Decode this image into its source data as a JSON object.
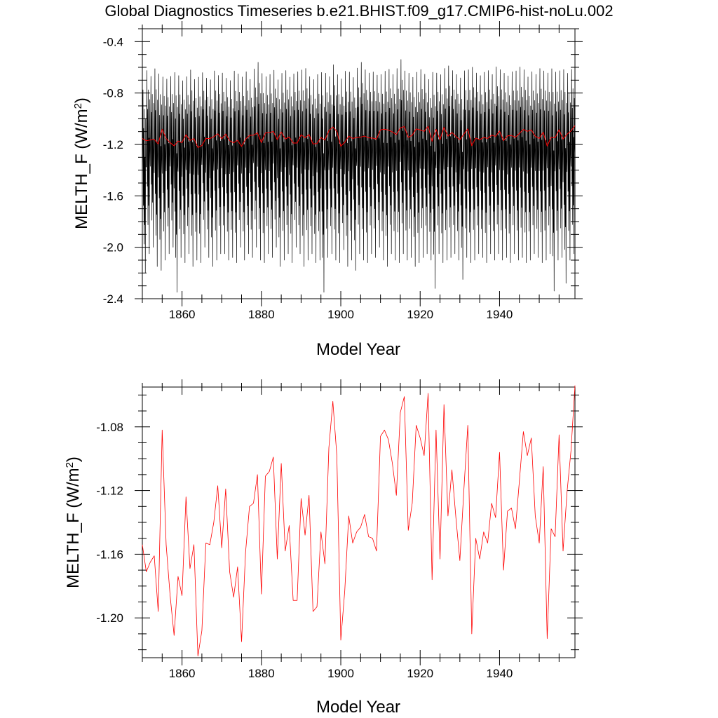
{
  "title": "Global Diagnostics Timeseries b.e21.BHIST.f09_g17.CMIP6-hist-noLu.002",
  "colors": {
    "monthly": "#000000",
    "annual": "#ff0000",
    "frame": "#000000"
  },
  "chart_data": [
    {
      "type": "line",
      "panel": "top",
      "xlabel": "Model Year",
      "ylabel": "MELTH_F (W/m",
      "ylabel_sup": "2",
      "ylabel_end": ")",
      "xlim": [
        1850,
        1959
      ],
      "ylim": [
        -2.4,
        -0.3
      ],
      "x_ticks": [
        1860,
        1880,
        1900,
        1920,
        1940
      ],
      "x_tick_labels": [
        "1860",
        "1880",
        "1900",
        "1920",
        "1940"
      ],
      "y_ticks": [
        -0.4,
        -0.8,
        -1.2,
        -1.6,
        -2.0,
        -2.4
      ],
      "y_tick_labels": [
        "-0.4",
        "-0.8",
        "-1.2",
        "-1.6",
        "-2.0",
        "-2.4"
      ],
      "monthly_series": {
        "start_year": 1850,
        "samples_per_year": 12,
        "annual_peak_max": [
          -0.7,
          -0.55,
          -0.6,
          -0.53,
          -0.57,
          -0.6,
          -0.62,
          -0.6,
          -0.55,
          -0.59,
          -0.63,
          -0.6,
          -0.54,
          -0.62,
          -0.6,
          -0.57,
          -0.61,
          -0.62,
          -0.55,
          -0.59,
          -0.57,
          -0.61,
          -0.63,
          -0.55,
          -0.58,
          -0.6,
          -0.56,
          -0.62,
          -0.54,
          -0.48,
          -0.57,
          -0.6,
          -0.58,
          -0.55,
          -0.62,
          -0.57,
          -0.55,
          -0.6,
          -0.58,
          -0.56,
          -0.54,
          -0.53,
          -0.6,
          -0.62,
          -0.58,
          -0.55,
          -0.57,
          -0.6,
          -0.5,
          -0.58,
          -0.62,
          -0.55,
          -0.56,
          -0.6,
          -0.53,
          -0.48,
          -0.54,
          -0.57,
          -0.56,
          -0.59,
          -0.58,
          -0.55,
          -0.54,
          -0.58,
          -0.53,
          -0.46,
          -0.55,
          -0.57,
          -0.6,
          -0.56,
          -0.54,
          -0.58,
          -0.62,
          -0.55,
          -0.57,
          -0.58,
          -0.53,
          -0.51,
          -0.55,
          -0.58,
          -0.6,
          -0.55,
          -0.54,
          -0.52,
          -0.57,
          -0.59,
          -0.56,
          -0.55,
          -0.58,
          -0.52,
          -0.54,
          -0.57,
          -0.59,
          -0.56,
          -0.55,
          -0.52,
          -0.54,
          -0.6,
          -0.56,
          -0.58,
          -0.53,
          -0.55,
          -0.57,
          -0.52,
          -0.56,
          -0.55,
          -0.53,
          -0.57,
          -0.54,
          -0.54
        ],
        "annual_peak_min": [
          -2.2,
          -2.05,
          -2.0,
          -2.15,
          -2.18,
          -2.1,
          -2.05,
          -2.0,
          -2.35,
          -2.08,
          -2.12,
          -2.05,
          -2.15,
          -2.1,
          -2.12,
          -2.0,
          -2.08,
          -2.15,
          -2.1,
          -2.05,
          -2.05,
          -2.1,
          -2.08,
          -2.12,
          -2.0,
          -2.1,
          -2.05,
          -2.08,
          -2.0,
          -2.1,
          -2.12,
          -2.05,
          -2.08,
          -2.0,
          -2.15,
          -2.1,
          -2.05,
          -2.12,
          -2.0,
          -2.05,
          -2.15,
          -2.1,
          -2.05,
          -2.12,
          -2.1,
          -2.35,
          -2.08,
          -2.05,
          -2.1,
          -2.12,
          -2.02,
          -2.15,
          -2.1,
          -2.18,
          -2.05,
          -2.1,
          -2.12,
          -2.05,
          -2.08,
          -2.0,
          -2.1,
          -2.15,
          -2.05,
          -2.1,
          -2.12,
          -2.05,
          -2.1,
          -2.08,
          -2.15,
          -2.12,
          -2.08,
          -2.05,
          -2.1,
          -2.32,
          -2.05,
          -2.12,
          -2.1,
          -2.08,
          -2.05,
          -2.1,
          -2.25,
          -2.08,
          -2.12,
          -2.1,
          -2.05,
          -2.08,
          -2.12,
          -2.05,
          -2.1,
          -2.05,
          -2.1,
          -2.08,
          -2.12,
          -2.05,
          -2.1,
          -2.08,
          -2.12,
          -2.1,
          -2.05,
          -2.08,
          -2.12,
          -2.1,
          -2.05,
          -2.34,
          -2.1,
          -2.08,
          -2.28,
          -2.1,
          -2.05,
          -1.9
        ]
      }
    },
    {
      "type": "line",
      "panel": "bottom",
      "xlabel": "Model Year",
      "ylabel": "MELTH_F (W/m",
      "ylabel_sup": "2",
      "ylabel_end": ")",
      "xlim": [
        1850,
        1959
      ],
      "ylim": [
        -1.225,
        -1.055
      ],
      "x_ticks": [
        1860,
        1880,
        1900,
        1920,
        1940
      ],
      "x_tick_labels": [
        "1860",
        "1880",
        "1900",
        "1920",
        "1940"
      ],
      "y_ticks": [
        -1.08,
        -1.12,
        -1.16,
        -1.2
      ],
      "y_tick_labels": [
        "-1.08",
        "-1.12",
        "-1.16",
        "-1.20"
      ],
      "annual_series": {
        "x": [
          1850,
          1851,
          1852,
          1853,
          1854,
          1855,
          1856,
          1857,
          1858,
          1859,
          1860,
          1861,
          1862,
          1863,
          1864,
          1865,
          1866,
          1867,
          1868,
          1869,
          1870,
          1871,
          1872,
          1873,
          1874,
          1875,
          1876,
          1877,
          1878,
          1879,
          1880,
          1881,
          1882,
          1883,
          1884,
          1885,
          1886,
          1887,
          1888,
          1889,
          1890,
          1891,
          1892,
          1893,
          1894,
          1895,
          1896,
          1897,
          1898,
          1899,
          1900,
          1901,
          1902,
          1903,
          1904,
          1905,
          1906,
          1907,
          1908,
          1909,
          1910,
          1911,
          1912,
          1913,
          1914,
          1915,
          1916,
          1917,
          1918,
          1919,
          1920,
          1921,
          1922,
          1923,
          1924,
          1925,
          1926,
          1927,
          1928,
          1929,
          1930,
          1931,
          1932,
          1933,
          1934,
          1935,
          1936,
          1937,
          1938,
          1939,
          1940,
          1941,
          1942,
          1943,
          1944,
          1945,
          1946,
          1947,
          1948,
          1949,
          1950,
          1951,
          1952,
          1953,
          1954,
          1955,
          1956,
          1957,
          1958,
          1959
        ],
        "values": [
          -1.154,
          -1.171,
          -1.165,
          -1.161,
          -1.196,
          -1.082,
          -1.154,
          -1.186,
          -1.211,
          -1.174,
          -1.186,
          -1.124,
          -1.169,
          -1.154,
          -1.224,
          -1.208,
          -1.153,
          -1.154,
          -1.14,
          -1.117,
          -1.156,
          -1.119,
          -1.171,
          -1.187,
          -1.168,
          -1.215,
          -1.159,
          -1.13,
          -1.128,
          -1.11,
          -1.185,
          -1.111,
          -1.108,
          -1.099,
          -1.163,
          -1.103,
          -1.158,
          -1.142,
          -1.189,
          -1.189,
          -1.125,
          -1.148,
          -1.123,
          -1.196,
          -1.193,
          -1.146,
          -1.166,
          -1.093,
          -1.064,
          -1.098,
          -1.214,
          -1.183,
          -1.136,
          -1.153,
          -1.146,
          -1.143,
          -1.135,
          -1.149,
          -1.15,
          -1.158,
          -1.086,
          -1.082,
          -1.088,
          -1.103,
          -1.123,
          -1.071,
          -1.061,
          -1.145,
          -1.128,
          -1.079,
          -1.087,
          -1.098,
          -1.059,
          -1.176,
          -1.082,
          -1.163,
          -1.066,
          -1.136,
          -1.107,
          -1.137,
          -1.164,
          -1.12,
          -1.079,
          -1.21,
          -1.15,
          -1.163,
          -1.146,
          -1.153,
          -1.128,
          -1.137,
          -1.096,
          -1.17,
          -1.133,
          -1.131,
          -1.144,
          -1.114,
          -1.083,
          -1.098,
          -1.087,
          -1.136,
          -1.153,
          -1.105,
          -1.213,
          -1.144,
          -1.149,
          -1.085,
          -1.158,
          -1.121,
          -1.095,
          -1.054
        ]
      }
    }
  ]
}
